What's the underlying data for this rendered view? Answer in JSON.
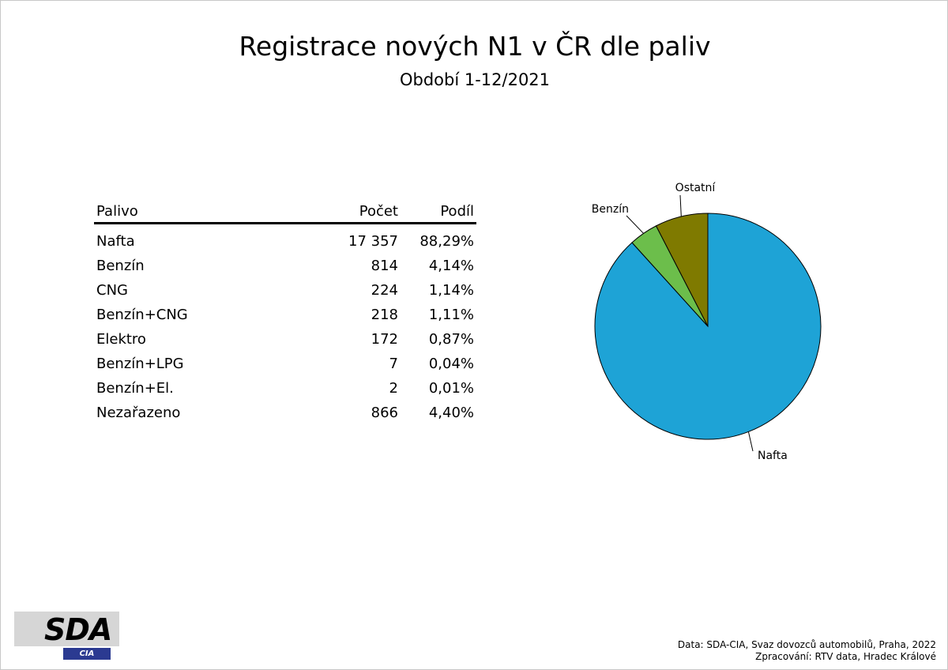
{
  "header": {
    "title": "Registrace nových N1 v ČR dle paliv",
    "subtitle": "Období 1-12/2021"
  },
  "table": {
    "headers": {
      "name": "Palivo",
      "count": "Počet",
      "share": "Podíl"
    },
    "rows": [
      {
        "name": "Nafta",
        "count": "17 357",
        "share": "88,29%"
      },
      {
        "name": "Benzín",
        "count": "814",
        "share": "4,14%"
      },
      {
        "name": "CNG",
        "count": "224",
        "share": "1,14%"
      },
      {
        "name": "Benzín+CNG",
        "count": "218",
        "share": "1,11%"
      },
      {
        "name": "Elektro",
        "count": "172",
        "share": "0,87%"
      },
      {
        "name": "Benzín+LPG",
        "count": "7",
        "share": "0,04%"
      },
      {
        "name": "Benzín+El.",
        "count": "2",
        "share": "0,01%"
      },
      {
        "name": "Nezařazeno",
        "count": "866",
        "share": "4,40%"
      }
    ]
  },
  "chart_data": {
    "type": "pie",
    "slices": [
      {
        "label": "Nafta",
        "value": 88.29,
        "color": "#1ea3d6"
      },
      {
        "label": "Benzín",
        "value": 4.14,
        "color": "#6cbe4b"
      },
      {
        "label": "Ostatní",
        "value": 7.57,
        "color": "#7f7a00"
      }
    ],
    "start": "12 o'clock",
    "direction": "clockwise"
  },
  "logo": {
    "main": "SDA",
    "sub": "CIA"
  },
  "source": {
    "line1": "Data: SDA-CIA, Svaz dovozců automobilů, Praha, 2022",
    "line2": "Zpracování: RTV data, Hradec Králové"
  }
}
